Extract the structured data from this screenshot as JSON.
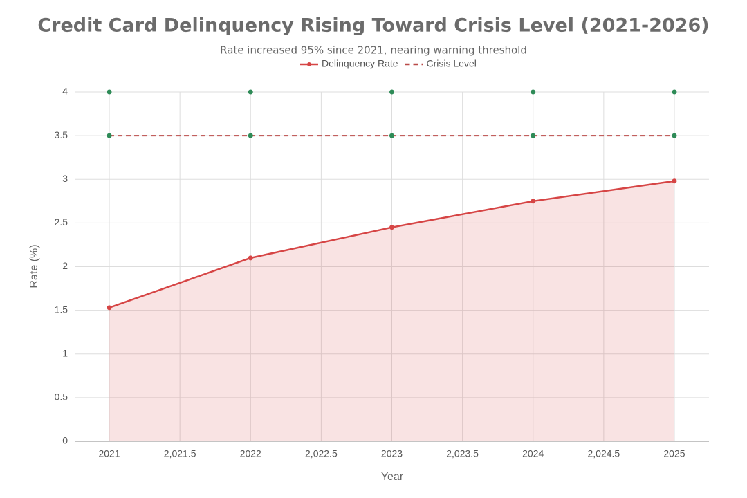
{
  "chart_data": {
    "type": "line",
    "title": "Credit Card Delinquency Rising Toward Crisis Level (2021-2026)",
    "subtitle": "Rate increased 95% since 2021, nearing warning threshold",
    "x_label": "Year",
    "y_label": "Rate (%)",
    "x": [
      2021,
      2022,
      2023,
      2024,
      2025
    ],
    "series": [
      {
        "name": "Delinquency Rate",
        "color": "#d64545",
        "values": [
          1.53,
          2.1,
          2.45,
          2.75,
          2.98
        ],
        "fill": true,
        "markers": true,
        "line": true,
        "dash": false
      },
      {
        "name": "Crisis Level",
        "color": "#b94a48",
        "values": [
          3.5,
          3.5,
          3.5,
          3.5,
          3.5
        ],
        "fill": false,
        "markers": false,
        "line": true,
        "dash": true
      },
      {
        "color": "#2e8b57",
        "values": [
          3.5,
          3.5,
          3.5,
          3.5,
          3.5
        ],
        "fill": false,
        "markers": true,
        "line": false,
        "dash": false
      },
      {
        "color": "#2e8b57",
        "values": [
          4,
          4,
          4,
          4,
          4
        ],
        "fill": false,
        "markers": true,
        "line": false,
        "dash": false
      }
    ],
    "xlim": [
      2020.755,
      2025.245
    ],
    "xticks": [
      2021,
      {
        "value": 2021.5,
        "label": "2,021.5"
      },
      2022,
      {
        "value": 2022.5,
        "label": "2,022.5"
      },
      2023,
      {
        "value": 2023.5,
        "label": "2,023.5"
      },
      2024,
      {
        "value": 2024.5,
        "label": "2,024.5"
      },
      2025
    ],
    "ylim": [
      0,
      4
    ],
    "yticks": [
      0,
      0.5,
      1,
      1.5,
      2,
      2.5,
      3,
      3.5,
      4
    ],
    "grid": true
  }
}
